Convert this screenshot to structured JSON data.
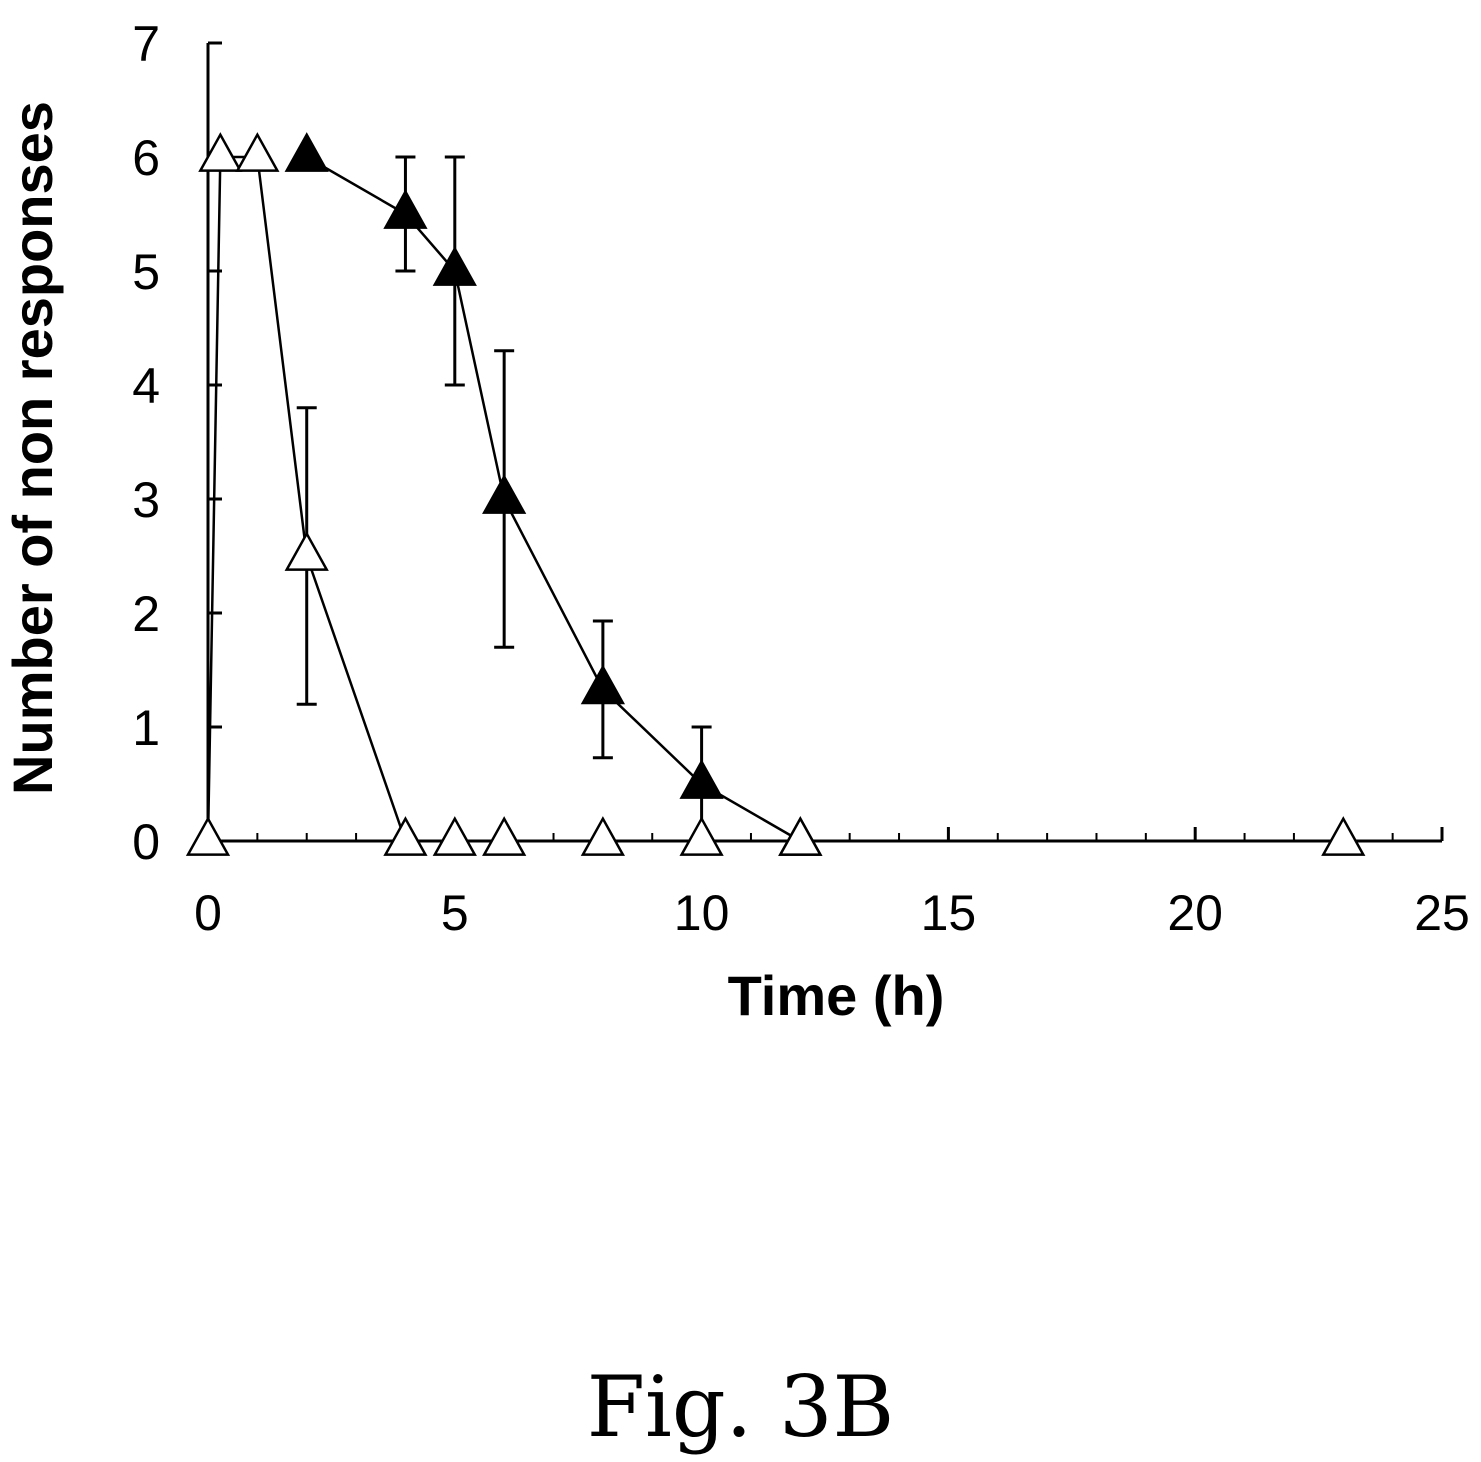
{
  "caption": "Fig. 3B",
  "chart_data": {
    "type": "line",
    "xlabel": "Time (h)",
    "ylabel": "Number of non responses",
    "xlim": [
      0,
      25
    ],
    "ylim": [
      0,
      7
    ],
    "x_ticks": [
      "0",
      "5",
      "10",
      "15",
      "20",
      "25"
    ],
    "y_ticks": [
      "0",
      "1",
      "2",
      "3",
      "4",
      "5",
      "6",
      "7"
    ],
    "grid": false,
    "series": [
      {
        "marker": "filled-triangle",
        "points": [
          {
            "x": 2,
            "y": 6
          },
          {
            "x": 4,
            "y": 5.5,
            "err": 0.5
          },
          {
            "x": 5,
            "y": 5,
            "err": 1
          },
          {
            "x": 6,
            "y": 3,
            "err": 1.3
          },
          {
            "x": 8,
            "y": 1.33,
            "err": 0.6
          },
          {
            "x": 10,
            "y": 0.5,
            "err": 0.5
          },
          {
            "x": 12,
            "y": 0
          }
        ]
      },
      {
        "marker": "open-triangle",
        "points": [
          {
            "x": 0,
            "y": 0
          },
          {
            "x": 0.25,
            "y": 6
          },
          {
            "x": 1,
            "y": 6
          },
          {
            "x": 2,
            "y": 2.5,
            "err": 1.3
          },
          {
            "x": 4,
            "y": 0
          },
          {
            "x": 5,
            "y": 0
          },
          {
            "x": 6,
            "y": 0
          },
          {
            "x": 8,
            "y": 0
          },
          {
            "x": 10,
            "y": 0
          },
          {
            "x": 12,
            "y": 0
          },
          {
            "x": 23,
            "y": 0
          }
        ]
      }
    ]
  }
}
